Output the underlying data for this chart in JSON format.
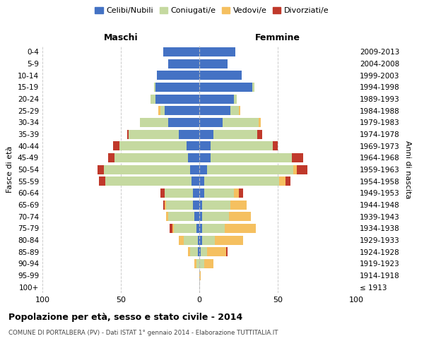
{
  "age_groups": [
    "100+",
    "95-99",
    "90-94",
    "85-89",
    "80-84",
    "75-79",
    "70-74",
    "65-69",
    "60-64",
    "55-59",
    "50-54",
    "45-49",
    "40-44",
    "35-39",
    "30-34",
    "25-29",
    "20-24",
    "15-19",
    "10-14",
    "5-9",
    "0-4"
  ],
  "birth_years": [
    "≤ 1913",
    "1914-1918",
    "1919-1923",
    "1924-1928",
    "1929-1933",
    "1934-1938",
    "1939-1943",
    "1944-1948",
    "1949-1953",
    "1954-1958",
    "1959-1963",
    "1964-1968",
    "1969-1973",
    "1974-1978",
    "1979-1983",
    "1984-1988",
    "1989-1993",
    "1994-1998",
    "1999-2003",
    "2004-2008",
    "2009-2013"
  ],
  "maschi": {
    "celibi": [
      0,
      0,
      0,
      1,
      1,
      2,
      3,
      4,
      4,
      5,
      6,
      7,
      8,
      13,
      20,
      22,
      28,
      28,
      27,
      20,
      23
    ],
    "coniugati": [
      0,
      0,
      2,
      5,
      9,
      14,
      17,
      17,
      18,
      55,
      55,
      47,
      43,
      32,
      18,
      3,
      3,
      1,
      0,
      0,
      0
    ],
    "vedovi": [
      0,
      0,
      1,
      1,
      3,
      1,
      1,
      1,
      0,
      0,
      0,
      0,
      0,
      0,
      0,
      1,
      0,
      0,
      0,
      0,
      0
    ],
    "divorziati": [
      0,
      0,
      0,
      0,
      0,
      2,
      0,
      1,
      3,
      4,
      4,
      4,
      4,
      1,
      0,
      0,
      0,
      0,
      0,
      0,
      0
    ]
  },
  "femmine": {
    "nubili": [
      0,
      0,
      0,
      1,
      2,
      2,
      2,
      2,
      3,
      3,
      5,
      7,
      7,
      9,
      15,
      20,
      22,
      34,
      27,
      18,
      23
    ],
    "coniugate": [
      0,
      0,
      3,
      4,
      8,
      14,
      17,
      18,
      19,
      48,
      55,
      52,
      40,
      28,
      23,
      5,
      2,
      1,
      0,
      0,
      0
    ],
    "vedove": [
      0,
      1,
      6,
      12,
      18,
      20,
      14,
      10,
      3,
      4,
      2,
      0,
      0,
      0,
      1,
      1,
      0,
      0,
      0,
      0,
      0
    ],
    "divorziate": [
      0,
      0,
      0,
      1,
      0,
      0,
      0,
      0,
      3,
      3,
      7,
      7,
      3,
      3,
      0,
      0,
      0,
      0,
      0,
      0,
      0
    ]
  },
  "colors": {
    "celibi_nubili": "#4472c4",
    "coniugati_e": "#c5d9a0",
    "vedovi_e": "#f5c060",
    "divorziati_e": "#c0392b"
  },
  "title": "Popolazione per età, sesso e stato civile - 2014",
  "subtitle": "COMUNE DI PORTALBERA (PV) - Dati ISTAT 1° gennaio 2014 - Elaborazione TUTTITALIA.IT",
  "xlabel_left": "Maschi",
  "xlabel_right": "Femmine",
  "ylabel_left": "Fasce di età",
  "ylabel_right": "Anni di nascita",
  "xlim": 100,
  "legend_labels": [
    "Celibi/Nubili",
    "Coniugati/e",
    "Vedovi/e",
    "Divorziati/e"
  ],
  "background_color": "#ffffff"
}
